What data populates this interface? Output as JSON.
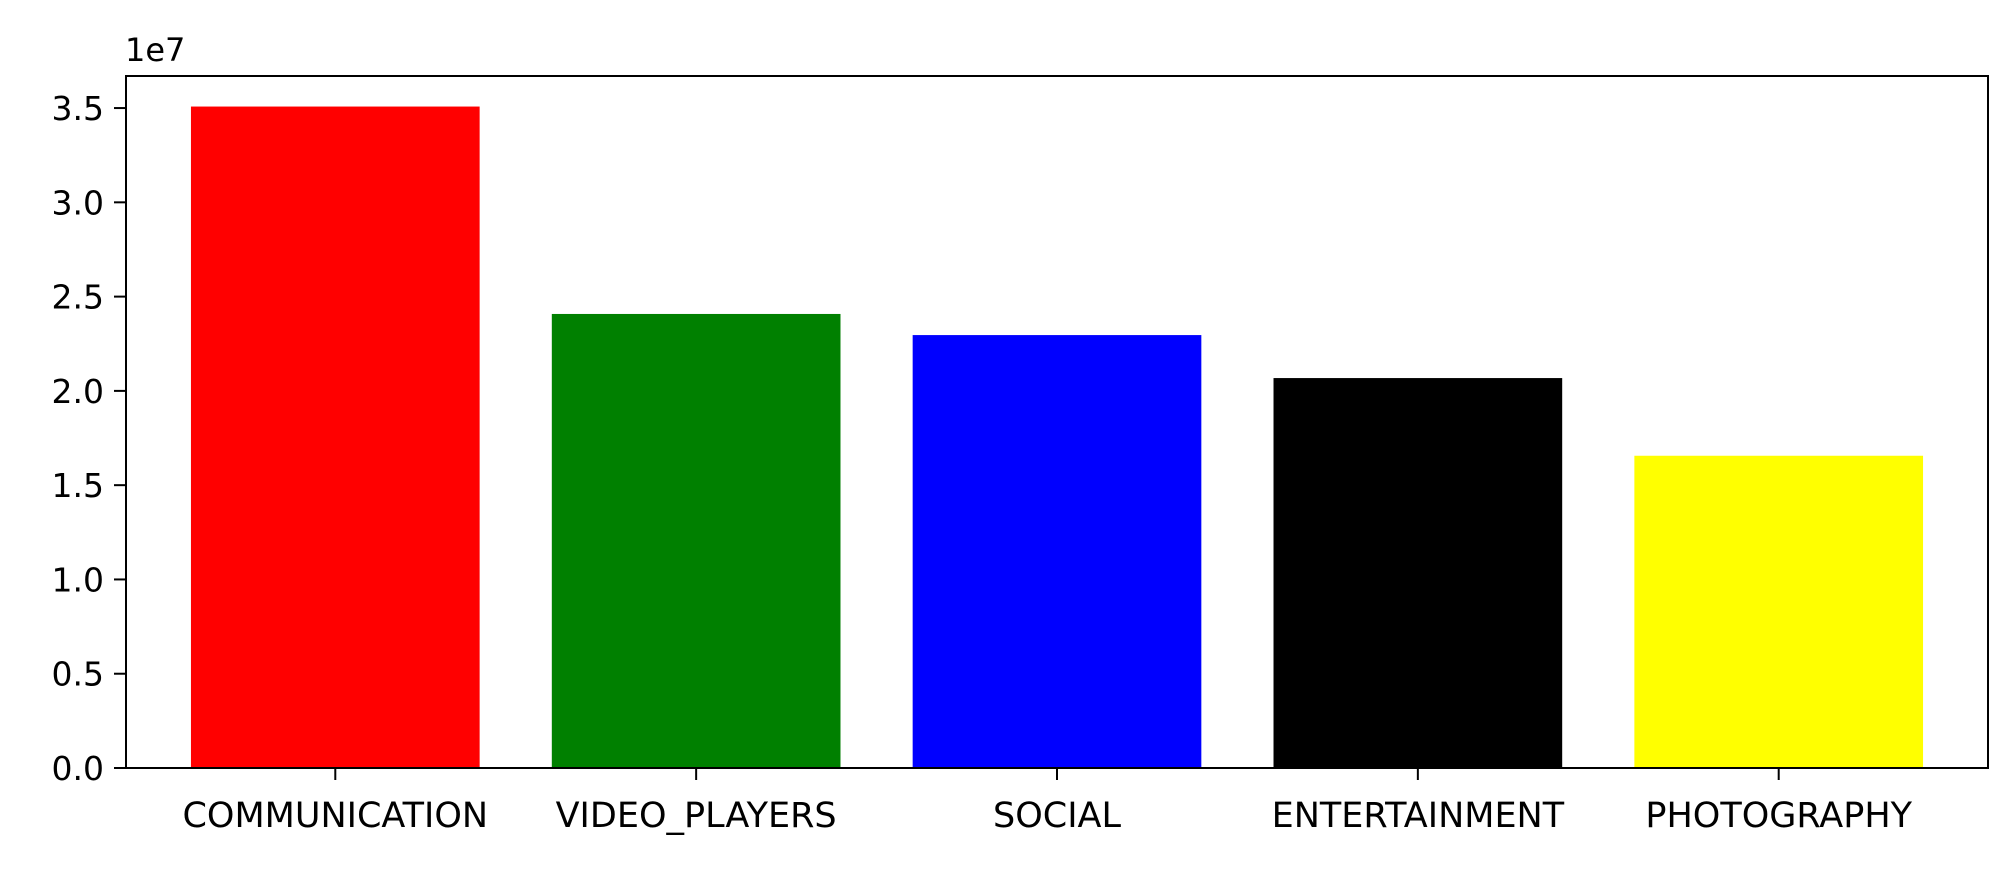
{
  "chart_data": {
    "type": "bar",
    "title": "",
    "xlabel": "",
    "ylabel": "",
    "categories": [
      "COMMUNICATION",
      "VIDEO_PLAYERS",
      "SOCIAL",
      "ENTERTAINMENT",
      "PHOTOGRAPHY"
    ],
    "values": [
      35080000,
      24080000,
      22960000,
      20680000,
      16560000
    ],
    "colors": [
      "#ff0000",
      "#008000",
      "#0000ff",
      "#000000",
      "#ffff00"
    ],
    "ylim": [
      0,
      36700000
    ],
    "yticks": [
      0,
      5000000,
      10000000,
      15000000,
      20000000,
      25000000,
      30000000,
      35000000
    ],
    "ytick_labels": [
      "0.0",
      "0.5",
      "1.0",
      "1.5",
      "2.0",
      "2.5",
      "3.0",
      "3.5"
    ],
    "y_offset_label": "1e7",
    "grid": false,
    "legend": "none"
  }
}
